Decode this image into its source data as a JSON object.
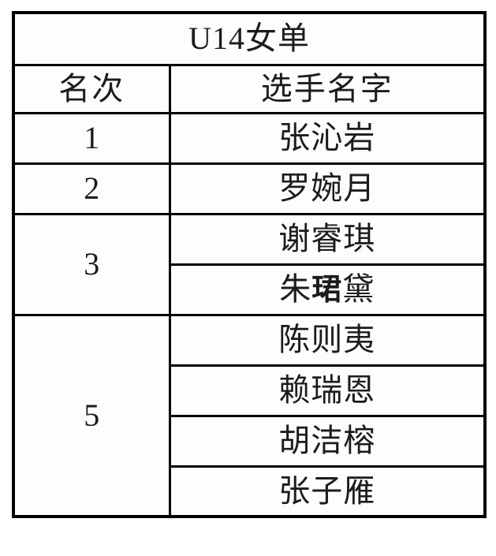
{
  "title": "U14女单",
  "columns": {
    "rank": "名次",
    "player": "选手名字"
  },
  "groups": [
    {
      "rank": "1",
      "players": [
        {
          "text": "张沁岩"
        }
      ]
    },
    {
      "rank": "2",
      "players": [
        {
          "text": "罗婉月"
        }
      ]
    },
    {
      "rank": "3",
      "players": [
        {
          "text": "谢睿琪"
        },
        {
          "pre": "朱",
          "bold": "珺",
          "post": "黛"
        }
      ]
    },
    {
      "rank": "5",
      "players": [
        {
          "text": "陈则夷"
        },
        {
          "text": "赖瑞恩"
        },
        {
          "text": "胡洁榕"
        },
        {
          "text": "张子雁"
        }
      ]
    }
  ],
  "colors": {
    "page-bg": "#ffffff",
    "header-bg": "#e9e8e6",
    "cell-bg": "#fdfdfd",
    "border": "#000000",
    "text": "#1c1c1c"
  }
}
